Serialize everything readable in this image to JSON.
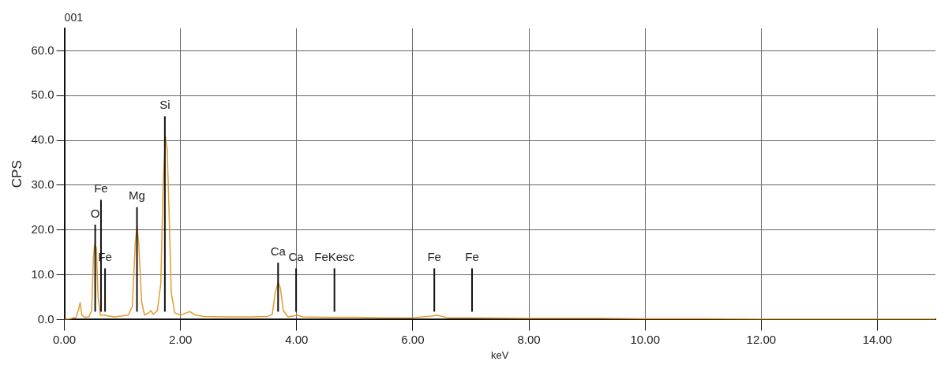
{
  "chart_data": {
    "type": "line",
    "title": "001",
    "xlabel": "keV",
    "ylabel": "CPS",
    "x": [
      0,
      0.1,
      0.2,
      0.25,
      0.27,
      0.3,
      0.35,
      0.42,
      0.47,
      0.5,
      0.52,
      0.55,
      0.58,
      0.62,
      0.7,
      0.75,
      0.85,
      1.0,
      1.1,
      1.17,
      1.22,
      1.25,
      1.28,
      1.33,
      1.38,
      1.45,
      1.49,
      1.53,
      1.6,
      1.66,
      1.7,
      1.74,
      1.77,
      1.8,
      1.84,
      1.9,
      2.0,
      2.1,
      2.16,
      2.25,
      2.4,
      2.8,
      3.2,
      3.5,
      3.58,
      3.63,
      3.68,
      3.72,
      3.77,
      3.85,
      3.95,
      4.01,
      4.1,
      4.5,
      5,
      5.5,
      6,
      6.35,
      6.4,
      6.47,
      6.6,
      7,
      8,
      9,
      10,
      11,
      12,
      13,
      14,
      15
    ],
    "series": [
      {
        "color": "#e39b2f",
        "values": [
          0,
          0.2,
          0.5,
          2.5,
          3.8,
          1.0,
          0.5,
          0.6,
          2.0,
          14,
          16.8,
          16,
          5,
          1.0,
          1.0,
          0.8,
          0.6,
          0.8,
          1.0,
          3,
          17,
          20.7,
          17,
          4,
          1.0,
          1.5,
          2.0,
          1.2,
          2,
          8,
          30,
          41,
          38,
          25,
          6,
          1.5,
          1.0,
          1.5,
          1.8,
          1.0,
          0.7,
          0.6,
          0.6,
          0.7,
          1.2,
          6,
          8.3,
          7,
          2,
          0.6,
          0.8,
          1.0,
          0.6,
          0.5,
          0.5,
          0.4,
          0.4,
          0.8,
          1.0,
          0.8,
          0.4,
          0.4,
          0.3,
          0.3,
          0.2,
          0.2,
          0.1,
          0.1,
          0.1,
          0.1
        ]
      }
    ],
    "xlim": [
      0,
      15
    ],
    "xticks": [
      {
        "value": 0,
        "label": "0.00"
      },
      {
        "value": 2,
        "label": "2.00"
      },
      {
        "value": 4,
        "label": "4.00"
      },
      {
        "value": 6,
        "label": "6.00"
      },
      {
        "value": 8,
        "label": "8.00"
      },
      {
        "value": 10,
        "label": "10.00"
      },
      {
        "value": 12,
        "label": "12.00"
      },
      {
        "value": 14,
        "label": "14.00"
      }
    ],
    "ylim": [
      0,
      65
    ],
    "yticks": [
      {
        "value": 0,
        "label": "0.0"
      },
      {
        "value": 10,
        "label": "10.0"
      },
      {
        "value": 20,
        "label": "20.0"
      },
      {
        "value": 30,
        "label": "30.0"
      },
      {
        "value": 40,
        "label": "40.0"
      },
      {
        "value": 50,
        "label": "50.0"
      },
      {
        "value": 60,
        "label": "60.0"
      }
    ],
    "grid": true,
    "legend": false,
    "marker": "none",
    "line_style": "solid",
    "ref_lines": [
      {
        "axis": "x",
        "value": 0.53,
        "label": "O"
      },
      {
        "axis": "x",
        "value": 0.7,
        "label": "Fe"
      },
      {
        "axis": "x",
        "value": 0.63,
        "label": "Fe"
      },
      {
        "axis": "x",
        "value": 1.25,
        "label": "Mg"
      },
      {
        "axis": "x",
        "value": 1.73,
        "label": "Si"
      },
      {
        "axis": "x",
        "value": 3.68,
        "label": "Ca"
      },
      {
        "axis": "x",
        "value": 3.99,
        "label": "Ca"
      },
      {
        "axis": "x",
        "value": 4.65,
        "label": "FeKesc"
      },
      {
        "axis": "x",
        "value": 6.37,
        "label": "Fe"
      },
      {
        "axis": "x",
        "value": 7.02,
        "label": "Fe"
      }
    ]
  }
}
